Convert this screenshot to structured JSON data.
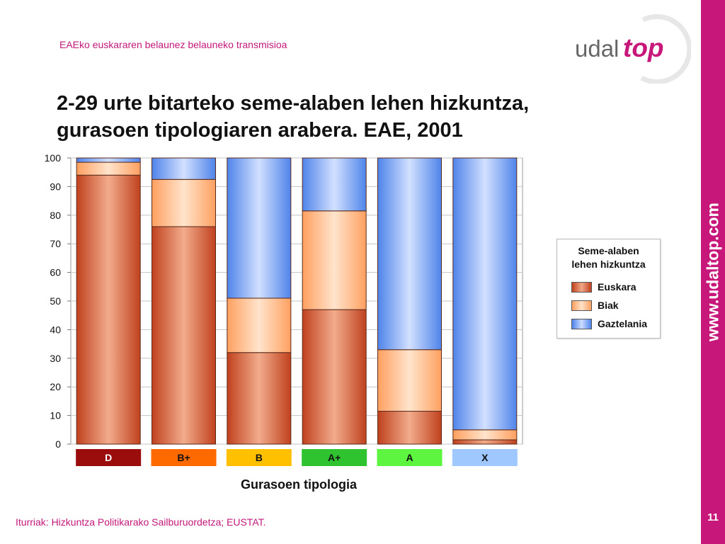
{
  "header": {
    "topline": "EAEko euskararen belaunez belauneko transmisioa",
    "logo_text_a": "udal",
    "logo_text_b": "top"
  },
  "slide": {
    "title_line1": "2-29 urte bitarteko seme-alaben lehen hizkuntza,",
    "title_line2": "gurasoen tipologiaren arabera. EAE, 2001",
    "source": "Iturriak: Hizkuntza Politikarako Sailburuordetza; EUSTAT.",
    "url": "www.udaltop.com",
    "page_number": "11"
  },
  "colors": {
    "brand": "#c8177a",
    "euskara": "#d2502a",
    "biak": "#ffb07a",
    "gaztelania": "#5b8ff0"
  },
  "chart_data": {
    "type": "bar",
    "stacked": true,
    "categories": [
      "D",
      "B+",
      "B",
      "A+",
      "A",
      "X"
    ],
    "category_colors": [
      "#9b0d0d",
      "#ff6a00",
      "#ffc000",
      "#2fc42f",
      "#5df53f",
      "#9ec8ff"
    ],
    "category_text_colors": [
      "#ffffff",
      "#111111",
      "#111111",
      "#111111",
      "#111111",
      "#111111"
    ],
    "series": [
      {
        "name": "Euskara",
        "values": [
          94,
          76,
          32,
          47,
          11.5,
          1.5
        ]
      },
      {
        "name": "Biak",
        "values": [
          4.5,
          16.5,
          19,
          34.5,
          21.5,
          3.5
        ]
      },
      {
        "name": "Gaztelania",
        "values": [
          1.5,
          7.5,
          49,
          18.5,
          67,
          95
        ]
      }
    ],
    "legend_title_line1": "Seme-alaben",
    "legend_title_line2": "lehen hizkuntza",
    "xlabel": "Gurasoen tipologia",
    "ylabel": "",
    "ylim": [
      0,
      100
    ],
    "yticks": [
      0,
      10,
      20,
      30,
      40,
      50,
      60,
      70,
      80,
      90,
      100
    ],
    "grid": true,
    "legend_position": "right"
  }
}
